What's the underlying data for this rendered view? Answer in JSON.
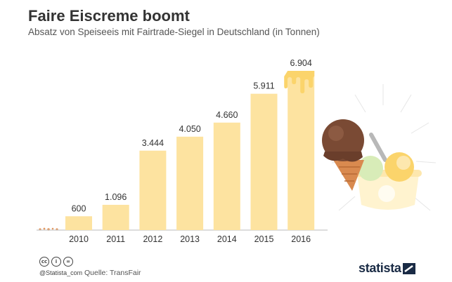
{
  "header": {
    "title": "Faire Eiscreme boomt",
    "subtitle": "Absatz von Speiseeis mit Fairtrade-Siegel in Deutschland (in Tonnen)"
  },
  "chart_data": {
    "type": "bar",
    "categories": [
      "2010",
      "2011",
      "2012",
      "2013",
      "2014",
      "2015",
      "2016"
    ],
    "values": [
      600,
      1096,
      3444,
      4050,
      4660,
      5911,
      6904
    ],
    "value_labels": [
      "600",
      "1.096",
      "3.444",
      "4.050",
      "4.660",
      "5.911",
      "6.904"
    ],
    "title": "Faire Eiscreme boomt",
    "subtitle": "Absatz von Speiseeis mit Fairtrade-Siegel in Deutschland (in Tonnen)",
    "ylim": [
      0,
      6904
    ],
    "grid": false,
    "colors": {
      "bar": "#fde3a0",
      "highlight": "#fbd46b",
      "axis": "#bbbbbb"
    }
  },
  "footer": {
    "license_icons": [
      "cc-icon",
      "by-icon",
      "equals-icon"
    ],
    "handle": "@Statista_com",
    "source": "Quelle: TransFair",
    "brand": "statista"
  }
}
